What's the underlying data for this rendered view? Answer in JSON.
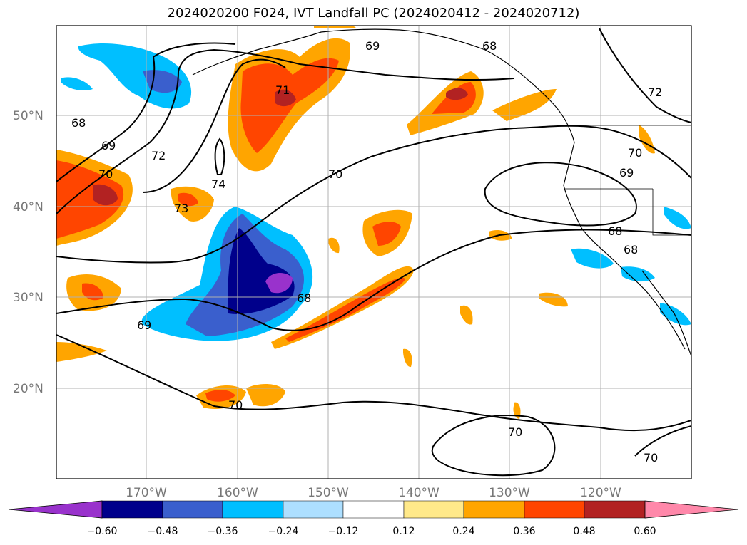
{
  "title": "2024020200 F024, IVT Landfall PC (2024020412 - 2024020712)",
  "map": {
    "lon_range": [
      -180,
      -110
    ],
    "lat_range": [
      10,
      60
    ],
    "lat_ticks": [
      {
        "value": 50,
        "label": "50°N"
      },
      {
        "value": 40,
        "label": "40°N"
      },
      {
        "value": 30,
        "label": "30°N"
      },
      {
        "value": 20,
        "label": "20°N"
      }
    ],
    "lon_ticks": [
      {
        "value": -170,
        "label": "170°W"
      },
      {
        "value": -160,
        "label": "160°W"
      },
      {
        "value": -150,
        "label": "150°W"
      },
      {
        "value": -140,
        "label": "140°W"
      },
      {
        "value": -130,
        "label": "130°W"
      },
      {
        "value": -120,
        "label": "120°W"
      }
    ],
    "grid": true,
    "contour_labels": [
      "68",
      "69",
      "70",
      "72",
      "74",
      "73",
      "71"
    ]
  },
  "colorbar": {
    "colors": [
      "#9932CC",
      "#00008B",
      "#3A5FCD",
      "#00BFFF",
      "#ADDFFF",
      "#FFFFFF",
      "#FFE98A",
      "#FFA500",
      "#FF4500",
      "#B22222",
      "#FF88AA"
    ],
    "labels": [
      "−0.60",
      "−0.48",
      "−0.36",
      "−0.24",
      "−0.12",
      "0.12",
      "0.24",
      "0.36",
      "0.48",
      "0.60"
    ]
  }
}
